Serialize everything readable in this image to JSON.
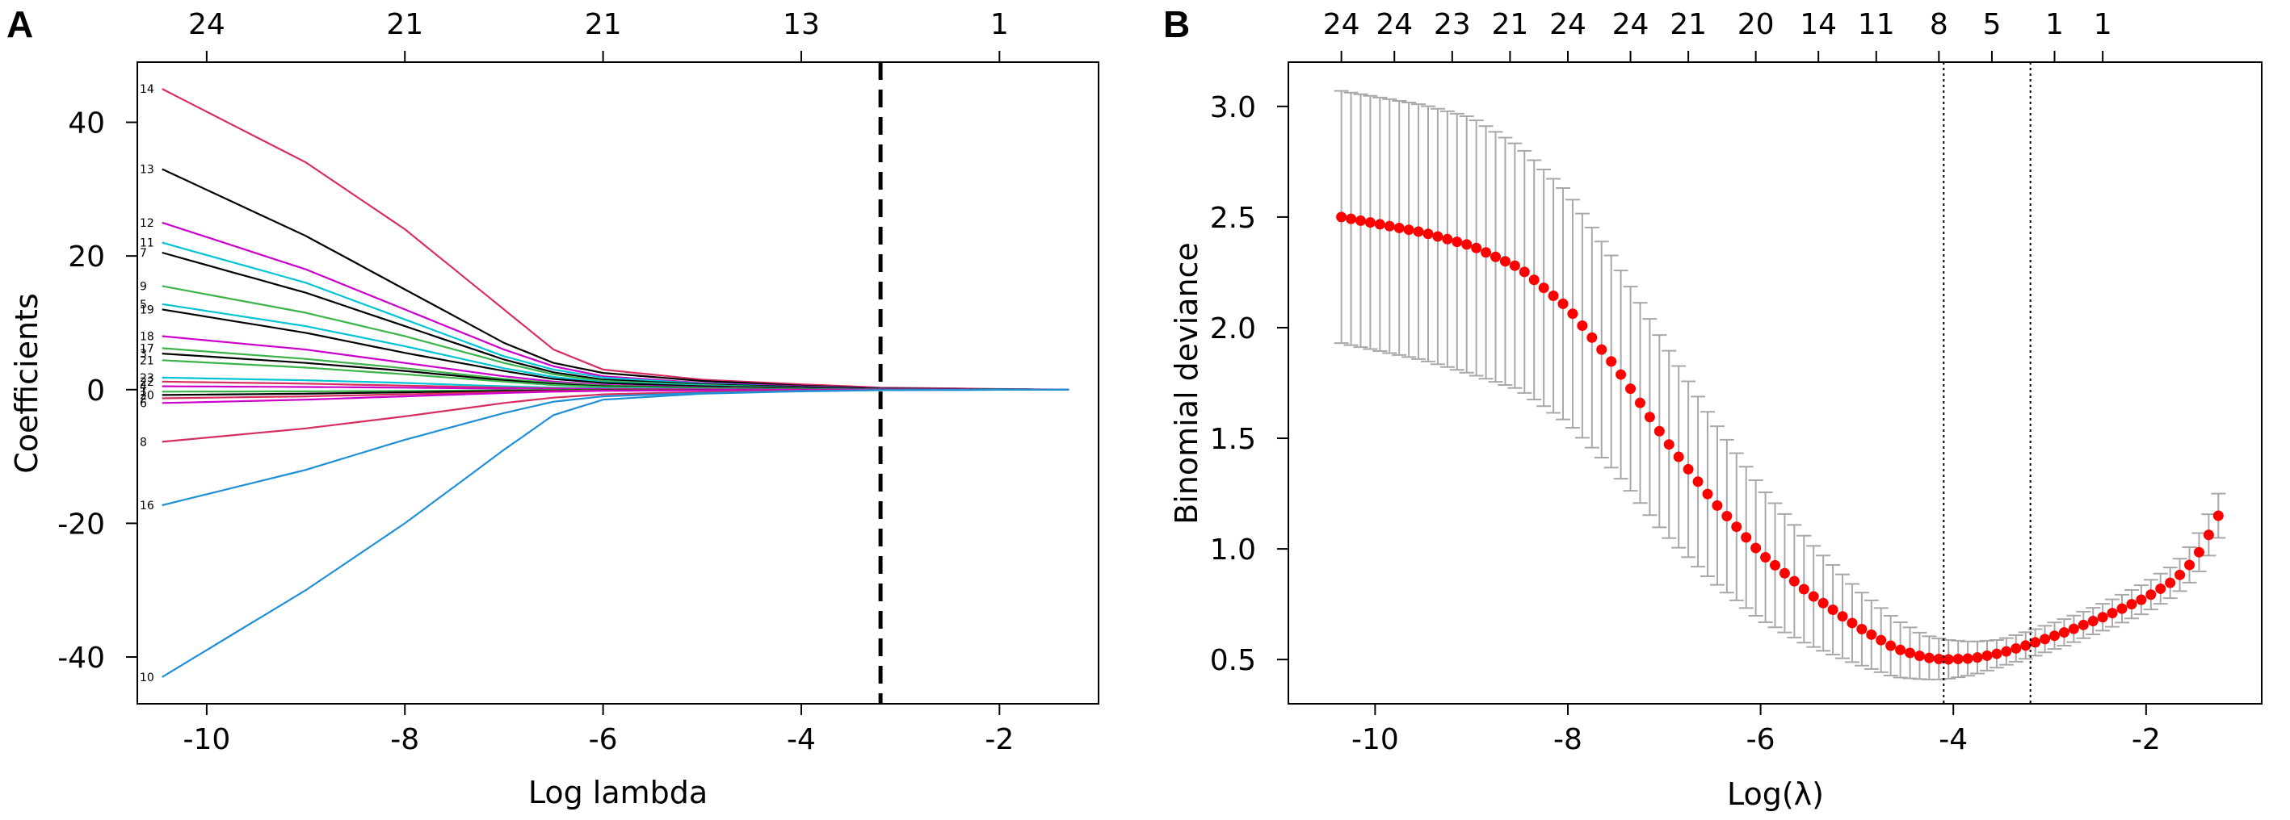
{
  "chart_data": [
    {
      "panel": "A",
      "type": "line",
      "title": "",
      "xlabel": "Log lambda",
      "ylabel": "Coefficients",
      "xlim": [
        -10.7,
        -1.0
      ],
      "ylim": [
        -47,
        49
      ],
      "xticks": [
        -10,
        -8,
        -6,
        -4,
        -2
      ],
      "yticks": [
        -40,
        -20,
        0,
        20,
        40
      ],
      "top_ticks": [
        {
          "x": -10,
          "label": "24"
        },
        {
          "x": -8,
          "label": "21"
        },
        {
          "x": -6,
          "label": "21"
        },
        {
          "x": -4,
          "label": "13"
        },
        {
          "x": -2,
          "label": "1"
        }
      ],
      "vline": {
        "x": -3.2,
        "style": "dashed"
      },
      "x": [
        -10.45,
        -9.0,
        -8.0,
        -7.0,
        -6.5,
        -6.0,
        -5.0,
        -4.0,
        -3.2,
        -2.0,
        -1.3
      ],
      "series": [
        {
          "name": "14",
          "color": "#d62f5f",
          "values": [
            45,
            34,
            24,
            12,
            6,
            3,
            1.5,
            0.8,
            0.3,
            0.1,
            0
          ]
        },
        {
          "name": "13",
          "color": "#000000",
          "values": [
            33,
            23,
            15,
            7,
            4,
            2.5,
            1.3,
            0.6,
            0.2,
            0.05,
            0
          ]
        },
        {
          "name": "12",
          "color": "#cc00cc",
          "values": [
            25,
            18,
            12,
            6,
            3.5,
            2,
            1,
            0.5,
            0.2,
            0.05,
            0
          ]
        },
        {
          "name": "11",
          "color": "#00c4d4",
          "values": [
            22,
            16,
            10.5,
            5,
            3,
            1.8,
            0.9,
            0.4,
            0.15,
            0.05,
            0
          ]
        },
        {
          "name": "7",
          "color": "#000000",
          "values": [
            20.5,
            14.5,
            9.5,
            4.5,
            2.6,
            1.5,
            0.8,
            0.4,
            0.15,
            0.05,
            0
          ]
        },
        {
          "name": "9",
          "color": "#3cb44b",
          "values": [
            15.5,
            11.5,
            8,
            4,
            2.3,
            1.3,
            0.7,
            0.3,
            0.1,
            0.03,
            0
          ]
        },
        {
          "name": "5",
          "color": "#00c4d4",
          "values": [
            12.8,
            9.5,
            6.5,
            3.2,
            1.9,
            1.1,
            0.6,
            0.3,
            0.1,
            0.03,
            0
          ]
        },
        {
          "name": "19",
          "color": "#000000",
          "values": [
            12,
            8.5,
            5.5,
            2.8,
            1.6,
            1,
            0.5,
            0.25,
            0.1,
            0.03,
            0
          ]
        },
        {
          "name": "18",
          "color": "#cc00cc",
          "values": [
            8,
            6,
            4,
            2,
            1.2,
            0.7,
            0.35,
            0.15,
            0.05,
            0.02,
            0
          ]
        },
        {
          "name": "17",
          "color": "#3cb44b",
          "values": [
            6.2,
            4.6,
            3.2,
            1.6,
            1,
            0.6,
            0.3,
            0.15,
            0.05,
            0.02,
            0
          ]
        },
        {
          "name": "3",
          "color": "#000000",
          "values": [
            5.4,
            4,
            2.8,
            1.4,
            0.85,
            0.5,
            0.25,
            0.12,
            0.05,
            0.02,
            0
          ]
        },
        {
          "name": "21",
          "color": "#3cb44b",
          "values": [
            4.4,
            3.3,
            2.3,
            1.2,
            0.7,
            0.4,
            0.2,
            0.1,
            0.04,
            0.01,
            0
          ]
        },
        {
          "name": "23",
          "color": "#00c4d4",
          "values": [
            1.8,
            1.4,
            1,
            0.5,
            0.3,
            0.2,
            0.1,
            0.05,
            0.02,
            0.01,
            0
          ]
        },
        {
          "name": "22",
          "color": "#d62f5f",
          "values": [
            1.2,
            0.9,
            0.6,
            0.3,
            0.2,
            0.1,
            0.05,
            0.03,
            0.01,
            0,
            0
          ]
        },
        {
          "name": "4",
          "color": "#cc00cc",
          "values": [
            0.5,
            0.4,
            0.3,
            0.15,
            0.1,
            0.05,
            0.03,
            0.01,
            0,
            0,
            0
          ]
        },
        {
          "name": "1",
          "color": "#3cb44b",
          "values": [
            -0.3,
            -0.25,
            -0.2,
            -0.1,
            -0.05,
            -0.03,
            -0.02,
            0,
            0,
            0,
            0
          ]
        },
        {
          "name": "20",
          "color": "#000000",
          "values": [
            -0.8,
            -0.6,
            -0.4,
            -0.2,
            -0.12,
            -0.08,
            -0.04,
            -0.02,
            0,
            0,
            0
          ]
        },
        {
          "name": "2",
          "color": "#d62f5f",
          "values": [
            -1.3,
            -1,
            -0.7,
            -0.35,
            -0.2,
            -0.12,
            -0.06,
            -0.03,
            -0.01,
            0,
            0
          ]
        },
        {
          "name": "6",
          "color": "#cc00cc",
          "values": [
            -2,
            -1.5,
            -1,
            -0.5,
            -0.3,
            -0.18,
            -0.09,
            -0.04,
            -0.01,
            0,
            0
          ]
        },
        {
          "name": "8",
          "color": "#d62f5f",
          "values": [
            -7.8,
            -5.8,
            -4,
            -2,
            -1.2,
            -0.7,
            -0.35,
            -0.15,
            -0.05,
            -0.01,
            0
          ]
        },
        {
          "name": "16",
          "color": "#1f8fd6",
          "values": [
            -17.3,
            -12,
            -7.5,
            -3.5,
            -1.8,
            -1,
            -0.5,
            -0.2,
            -0.07,
            -0.02,
            0
          ]
        },
        {
          "name": "10",
          "color": "#1f8fd6",
          "values": [
            -43,
            -30,
            -20,
            -9,
            -3.8,
            -1.5,
            -0.6,
            -0.25,
            -0.08,
            -0.02,
            0
          ]
        }
      ]
    },
    {
      "panel": "B",
      "type": "scatter",
      "title": "",
      "xlabel": "Log(λ)",
      "ylabel": "Binomial deviance",
      "xlim": [
        -10.9,
        -0.8
      ],
      "ylim": [
        0.3,
        3.2
      ],
      "xticks": [
        -10,
        -8,
        -6,
        -4,
        -2
      ],
      "yticks": [
        0.5,
        1.0,
        1.5,
        2.0,
        2.5,
        3.0
      ],
      "ytick_labels": [
        "0.5",
        "1.0",
        "1.5",
        "2.0",
        "2.5",
        "3.0"
      ],
      "top_ticks": [
        {
          "x": -10.35,
          "label": "24"
        },
        {
          "x": -9.8,
          "label": "24"
        },
        {
          "x": -9.2,
          "label": "23"
        },
        {
          "x": -8.6,
          "label": "21"
        },
        {
          "x": -8.0,
          "label": "24"
        },
        {
          "x": -7.35,
          "label": "24"
        },
        {
          "x": -6.75,
          "label": "21"
        },
        {
          "x": -6.05,
          "label": "20"
        },
        {
          "x": -5.4,
          "label": "14"
        },
        {
          "x": -4.8,
          "label": "11"
        },
        {
          "x": -4.15,
          "label": "8"
        },
        {
          "x": -3.6,
          "label": "5"
        },
        {
          "x": -2.95,
          "label": "1"
        },
        {
          "x": -2.45,
          "label": "1"
        }
      ],
      "vlines": [
        {
          "x": -4.1,
          "style": "dotted"
        },
        {
          "x": -3.2,
          "style": "dotted"
        }
      ],
      "x_start": -10.35,
      "x_step": 0.1,
      "n_points": 92,
      "curve_knots": {
        "x": [
          -10.35,
          -9.5,
          -9.0,
          -8.5,
          -8.0,
          -7.5,
          -7.0,
          -6.5,
          -6.0,
          -5.5,
          -5.0,
          -4.6,
          -4.3,
          -4.1,
          -3.8,
          -3.5,
          -3.2,
          -2.8,
          -2.4,
          -2.0,
          -1.7,
          -1.5,
          -1.4,
          -1.25
        ],
        "y": [
          2.5,
          2.43,
          2.37,
          2.27,
          2.09,
          1.82,
          1.5,
          1.22,
          0.98,
          0.8,
          0.65,
          0.55,
          0.51,
          0.5,
          0.505,
          0.53,
          0.57,
          0.63,
          0.7,
          0.78,
          0.86,
          0.95,
          1.02,
          1.15
        ]
      },
      "error_halfwidth_knots": {
        "x": [
          -10.35,
          -9.0,
          -8.0,
          -7.0,
          -6.0,
          -5.0,
          -4.3,
          -3.5,
          -2.5,
          -1.7,
          -1.25
        ],
        "y": [
          0.57,
          0.58,
          0.52,
          0.43,
          0.3,
          0.17,
          0.1,
          0.06,
          0.06,
          0.07,
          0.1
        ]
      },
      "point_color": "#ff0000",
      "errorbar_color": "#a8a8a8"
    }
  ]
}
